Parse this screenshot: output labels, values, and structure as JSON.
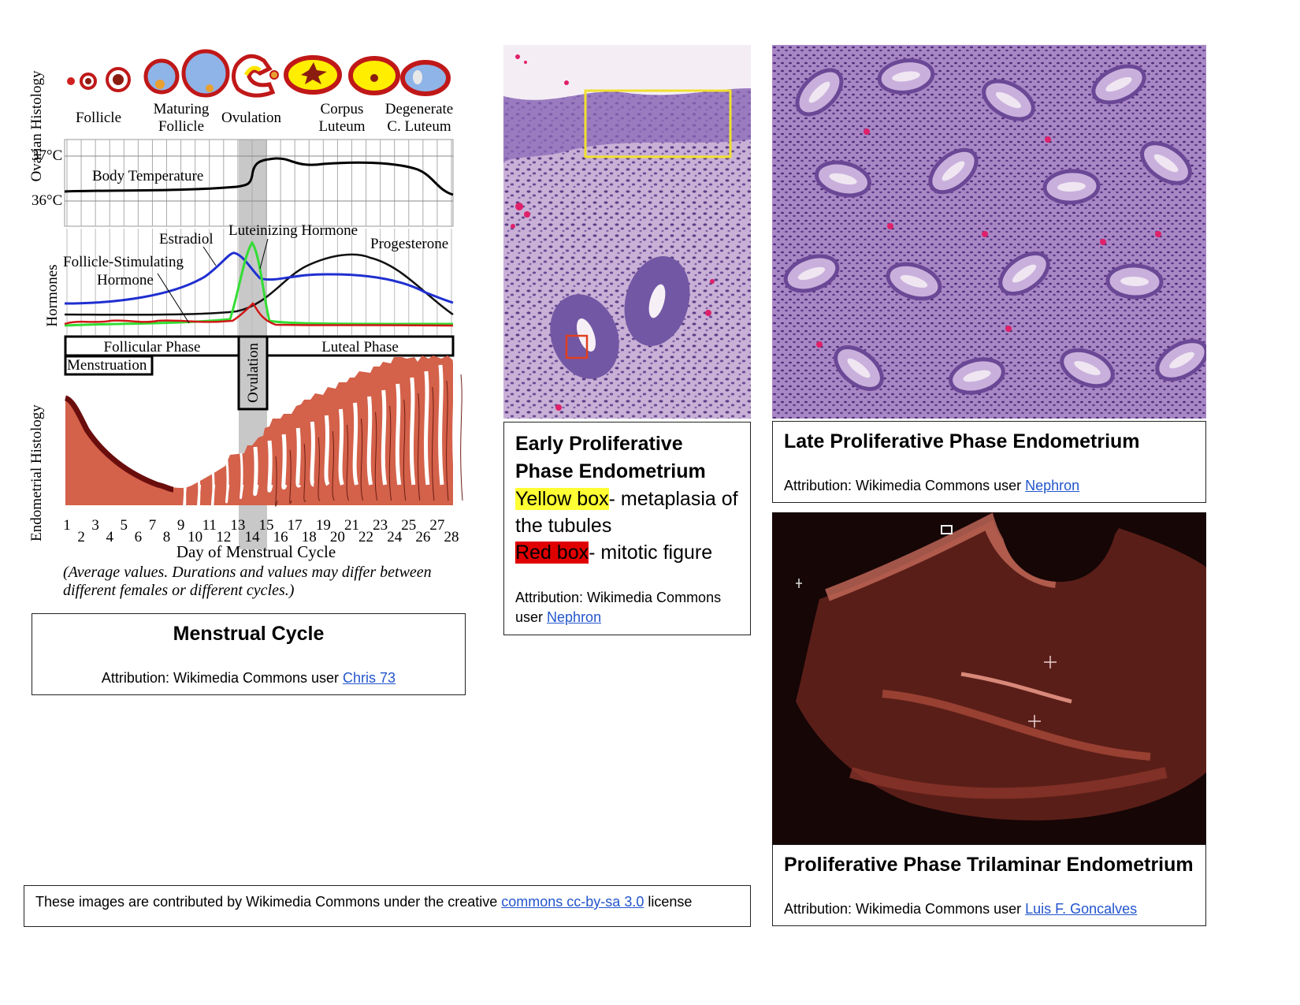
{
  "chart": {
    "ovarian_label": "Ovarian Histology",
    "ovary_labels": [
      "Follicle",
      "Maturing Follicle",
      "Ovulation",
      "Corpus Luteum",
      "Degenerate C. Luteum"
    ],
    "temp_high": "37°C",
    "temp_low": "36°C",
    "body_temperature": "Body Temperature",
    "hormones_label": "Hormones",
    "estradiol": "Estradiol",
    "lh": "Luteinizing  Hormone",
    "progesterone": "Progesterone",
    "fsh_line1": "Follicle-Stimulating",
    "fsh_line2": "Hormone",
    "follicular_phase": "Follicular Phase",
    "luteal_phase": "Luteal Phase",
    "menstruation": "Menstruation",
    "ovulation_bar": "Ovulation",
    "endometrial_label": "Endometrial Histology",
    "odd_days": [
      "1",
      "3",
      "5",
      "7",
      "9",
      "11",
      "13",
      "15",
      "17",
      "19",
      "21",
      "23",
      "25",
      "27"
    ],
    "even_days": [
      "2",
      "4",
      "6",
      "8",
      "10",
      "12",
      "14",
      "16",
      "18",
      "20",
      "22",
      "24",
      "26",
      "28"
    ],
    "x_title": "Day of Menstrual Cycle",
    "note_line1": "(Average values. Durations and values may differ between",
    "note_line2": "different females or different cycles.)"
  },
  "menstrual_caption": {
    "title": "Menstrual Cycle",
    "attr_prefix": "Attribution: Wikimedia Commons user ",
    "attr_link": "Chris 73"
  },
  "early_caption": {
    "title": "Early Proliferative Phase Endometrium",
    "yellow_hl": "Yellow box",
    "yellow_rest": "- metaplasia of the tubules",
    "red_hl": "Red box",
    "red_rest": "- mitotic figure",
    "attr_prefix": "Attribution: Wikimedia Commons user ",
    "attr_link": "Nephron"
  },
  "late_caption": {
    "title": "Late Proliferative Phase Endometrium",
    "attr_prefix": "Attribution: Wikimedia Commons user ",
    "attr_link": "Nephron"
  },
  "tri_caption": {
    "title": "Proliferative Phase Trilaminar Endometrium",
    "attr_prefix": "Attribution: Wikimedia Commons user ",
    "attr_link": "Luis F. Goncalves"
  },
  "license": {
    "prefix": "These images are contributed by Wikimedia Commons under the creative ",
    "link": "commons cc-by-sa 3.0",
    "suffix": " license"
  },
  "colors": {
    "histology_bg": "#b99ac9",
    "ultrasound_bg": "#160606",
    "estradiol": "#1f2fd0",
    "lh": "#33dd33",
    "fsh": "#d01818",
    "progesterone": "#111111",
    "endometrium": "#d4614a"
  }
}
